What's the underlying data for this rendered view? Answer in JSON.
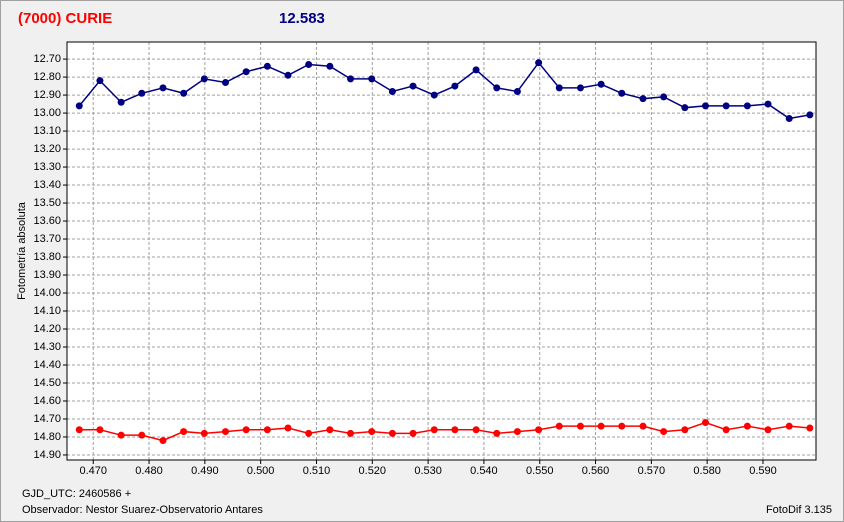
{
  "chart_data": {
    "type": "line",
    "title": "(7000) CURIE",
    "subtitle": "12.583",
    "y_label": "Fotometría absoluta",
    "footer_left_1": "GJD_UTC: 2460586 +",
    "footer_left_2": "Observador: Nestor Suarez-Observatorio Antares",
    "footer_right": "FotoDif 3.135",
    "y_reversed": true,
    "grid": true,
    "xlim": [
      0.4653,
      0.5995
    ],
    "ylim": [
      12.605,
      14.928
    ],
    "x": [
      0.4675,
      0.4712,
      0.475,
      0.4787,
      0.4825,
      0.4862,
      0.4899,
      0.4937,
      0.4974,
      0.5012,
      0.5049,
      0.5086,
      0.5124,
      0.5161,
      0.5199,
      0.5236,
      0.5273,
      0.5311,
      0.5348,
      0.5386,
      0.5423,
      0.546,
      0.5498,
      0.5535,
      0.5573,
      0.561,
      0.5647,
      0.5685,
      0.5722,
      0.576,
      0.5797,
      0.5834,
      0.5872,
      0.5909,
      0.5947,
      0.5984
    ],
    "series": [
      {
        "color": "#000080",
        "values": [
          12.96,
          12.82,
          12.94,
          12.89,
          12.86,
          12.89,
          12.81,
          12.83,
          12.77,
          12.74,
          12.79,
          12.73,
          12.74,
          12.81,
          12.81,
          12.88,
          12.85,
          12.9,
          12.85,
          12.76,
          12.86,
          12.88,
          12.72,
          12.86,
          12.86,
          12.84,
          12.89,
          12.92,
          12.91,
          12.97,
          12.96,
          12.96,
          12.96,
          12.95,
          13.03,
          13.01
        ]
      },
      {
        "color": "#ff0000",
        "values": [
          14.76,
          14.76,
          14.79,
          14.79,
          14.82,
          14.77,
          14.78,
          14.77,
          14.76,
          14.76,
          14.75,
          14.78,
          14.76,
          14.78,
          14.77,
          14.78,
          14.78,
          14.76,
          14.76,
          14.76,
          14.78,
          14.77,
          14.76,
          14.74,
          14.74,
          14.74,
          14.74,
          14.74,
          14.77,
          14.76,
          14.72,
          14.76,
          14.74,
          14.76,
          14.74,
          14.75
        ]
      }
    ],
    "xticks": [
      {
        "value": 0.47,
        "label": "0.470"
      },
      {
        "value": 0.48,
        "label": "0.480"
      },
      {
        "value": 0.49,
        "label": "0.490"
      },
      {
        "value": 0.5,
        "label": "0.500"
      },
      {
        "value": 0.51,
        "label": "0.510"
      },
      {
        "value": 0.52,
        "label": "0.520"
      },
      {
        "value": 0.53,
        "label": "0.530"
      },
      {
        "value": 0.54,
        "label": "0.540"
      },
      {
        "value": 0.55,
        "label": "0.550"
      },
      {
        "value": 0.56,
        "label": "0.560"
      },
      {
        "value": 0.57,
        "label": "0.570"
      },
      {
        "value": 0.58,
        "label": "0.580"
      },
      {
        "value": 0.59,
        "label": "0.590"
      }
    ],
    "yticks": [
      {
        "value": 12.7,
        "label": "12.70"
      },
      {
        "value": 12.8,
        "label": "12.80"
      },
      {
        "value": 12.9,
        "label": "12.90"
      },
      {
        "value": 13.0,
        "label": "13.00"
      },
      {
        "value": 13.1,
        "label": "13.10"
      },
      {
        "value": 13.2,
        "label": "13.20"
      },
      {
        "value": 13.3,
        "label": "13.30"
      },
      {
        "value": 13.4,
        "label": "13.40"
      },
      {
        "value": 13.5,
        "label": "13.50"
      },
      {
        "value": 13.6,
        "label": "13.60"
      },
      {
        "value": 13.7,
        "label": "13.70"
      },
      {
        "value": 13.8,
        "label": "13.80"
      },
      {
        "value": 13.9,
        "label": "13.90"
      },
      {
        "value": 14.0,
        "label": "14.00"
      },
      {
        "value": 14.1,
        "label": "14.10"
      },
      {
        "value": 14.2,
        "label": "14.20"
      },
      {
        "value": 14.3,
        "label": "14.30"
      },
      {
        "value": 14.4,
        "label": "14.40"
      },
      {
        "value": 14.5,
        "label": "14.50"
      },
      {
        "value": 14.6,
        "label": "14.60"
      },
      {
        "value": 14.7,
        "label": "14.70"
      },
      {
        "value": 14.8,
        "label": "14.80"
      },
      {
        "value": 14.9,
        "label": "14.90"
      }
    ]
  }
}
